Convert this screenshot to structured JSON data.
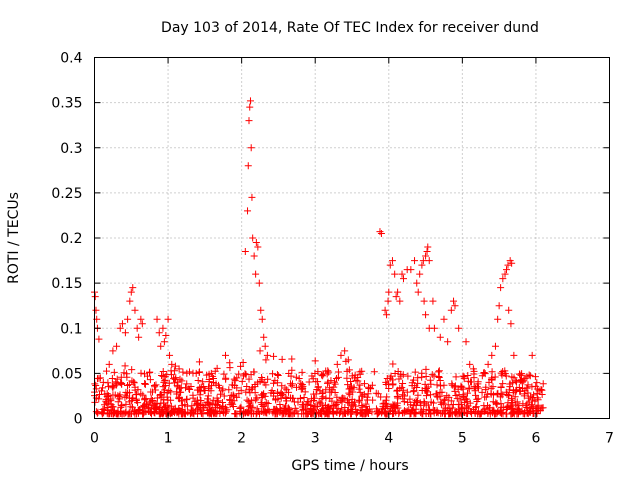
{
  "chart_data": {
    "type": "scatter",
    "title": "Day 103 of 2014, Rate Of TEC Index for receiver dund",
    "xlabel": "GPS time / hours",
    "ylabel": "ROTI / TECUs",
    "xlim": [
      0,
      7
    ],
    "ylim": [
      0,
      0.4
    ],
    "xticks": [
      0,
      1,
      2,
      3,
      4,
      5,
      6,
      7
    ],
    "xtick_labels": [
      "0",
      "1",
      "2",
      "3",
      "4",
      "5",
      "6",
      "7"
    ],
    "yticks": [
      0,
      0.05,
      0.1,
      0.15,
      0.2,
      0.25,
      0.3,
      0.35,
      0.4
    ],
    "ytick_labels": [
      "0",
      "0.05",
      "0.1",
      "0.15",
      "0.2",
      "0.25",
      "0.3",
      "0.35",
      "0.4"
    ],
    "grid": true,
    "marker": "+",
    "color": "#ff0000",
    "x_data_range": [
      0,
      6.1
    ],
    "baseline_roti": [
      0.005,
      0.035
    ],
    "series": [
      {
        "name": "ROTI",
        "points": [
          [
            0.0,
            0.14
          ],
          [
            0.01,
            0.135
          ],
          [
            0.02,
            0.12
          ],
          [
            0.03,
            0.11
          ],
          [
            0.04,
            0.1
          ],
          [
            0.06,
            0.088
          ],
          [
            0.08,
            0.045
          ],
          [
            0.12,
            0.04
          ],
          [
            0.2,
            0.06
          ],
          [
            0.25,
            0.075
          ],
          [
            0.3,
            0.08
          ],
          [
            0.35,
            0.1
          ],
          [
            0.38,
            0.105
          ],
          [
            0.42,
            0.095
          ],
          [
            0.45,
            0.11
          ],
          [
            0.48,
            0.13
          ],
          [
            0.5,
            0.14
          ],
          [
            0.52,
            0.145
          ],
          [
            0.55,
            0.12
          ],
          [
            0.58,
            0.1
          ],
          [
            0.6,
            0.09
          ],
          [
            0.63,
            0.11
          ],
          [
            0.65,
            0.105
          ],
          [
            0.85,
            0.11
          ],
          [
            0.88,
            0.095
          ],
          [
            0.9,
            0.08
          ],
          [
            0.93,
            0.1
          ],
          [
            0.95,
            0.085
          ],
          [
            0.97,
            0.092
          ],
          [
            1.0,
            0.11
          ],
          [
            1.02,
            0.07
          ],
          [
            1.05,
            0.06
          ],
          [
            1.1,
            0.058
          ],
          [
            1.15,
            0.055
          ],
          [
            2.02,
            0.062
          ],
          [
            2.05,
            0.185
          ],
          [
            2.08,
            0.23
          ],
          [
            2.09,
            0.28
          ],
          [
            2.1,
            0.33
          ],
          [
            2.11,
            0.345
          ],
          [
            2.12,
            0.352
          ],
          [
            2.13,
            0.3
          ],
          [
            2.14,
            0.245
          ],
          [
            2.15,
            0.2
          ],
          [
            2.17,
            0.18
          ],
          [
            2.19,
            0.16
          ],
          [
            2.2,
            0.195
          ],
          [
            2.22,
            0.19
          ],
          [
            2.24,
            0.15
          ],
          [
            2.26,
            0.12
          ],
          [
            2.28,
            0.11
          ],
          [
            2.3,
            0.09
          ],
          [
            2.32,
            0.08
          ],
          [
            2.35,
            0.07
          ],
          [
            2.25,
            0.075
          ],
          [
            2.33,
            0.065
          ],
          [
            3.3,
            0.06
          ],
          [
            3.35,
            0.07
          ],
          [
            3.4,
            0.075
          ],
          [
            3.45,
            0.065
          ],
          [
            3.88,
            0.207
          ],
          [
            3.9,
            0.205
          ],
          [
            3.95,
            0.12
          ],
          [
            3.97,
            0.115
          ],
          [
            3.99,
            0.13
          ],
          [
            4.0,
            0.14
          ],
          [
            4.02,
            0.17
          ],
          [
            4.05,
            0.175
          ],
          [
            4.08,
            0.16
          ],
          [
            4.1,
            0.135
          ],
          [
            4.12,
            0.14
          ],
          [
            4.15,
            0.13
          ],
          [
            4.18,
            0.16
          ],
          [
            4.2,
            0.155
          ],
          [
            4.25,
            0.165
          ],
          [
            4.3,
            0.165
          ],
          [
            4.35,
            0.175
          ],
          [
            4.38,
            0.15
          ],
          [
            4.4,
            0.14
          ],
          [
            4.42,
            0.16
          ],
          [
            4.45,
            0.17
          ],
          [
            4.47,
            0.175
          ],
          [
            4.5,
            0.18
          ],
          [
            4.52,
            0.185
          ],
          [
            4.53,
            0.19
          ],
          [
            4.55,
            0.175
          ],
          [
            4.48,
            0.13
          ],
          [
            4.5,
            0.115
          ],
          [
            4.55,
            0.1
          ],
          [
            4.6,
            0.13
          ],
          [
            4.62,
            0.1
          ],
          [
            4.7,
            0.09
          ],
          [
            4.75,
            0.11
          ],
          [
            4.8,
            0.085
          ],
          [
            4.85,
            0.12
          ],
          [
            4.88,
            0.13
          ],
          [
            4.9,
            0.125
          ],
          [
            4.95,
            0.1
          ],
          [
            5.05,
            0.085
          ],
          [
            5.1,
            0.06
          ],
          [
            5.15,
            0.055
          ],
          [
            5.35,
            0.06
          ],
          [
            5.4,
            0.07
          ],
          [
            5.45,
            0.08
          ],
          [
            5.48,
            0.11
          ],
          [
            5.5,
            0.125
          ],
          [
            5.52,
            0.145
          ],
          [
            5.55,
            0.155
          ],
          [
            5.58,
            0.16
          ],
          [
            5.6,
            0.165
          ],
          [
            5.62,
            0.17
          ],
          [
            5.65,
            0.175
          ],
          [
            5.67,
            0.172
          ],
          [
            5.63,
            0.12
          ],
          [
            5.66,
            0.105
          ],
          [
            5.7,
            0.07
          ]
        ]
      }
    ]
  }
}
